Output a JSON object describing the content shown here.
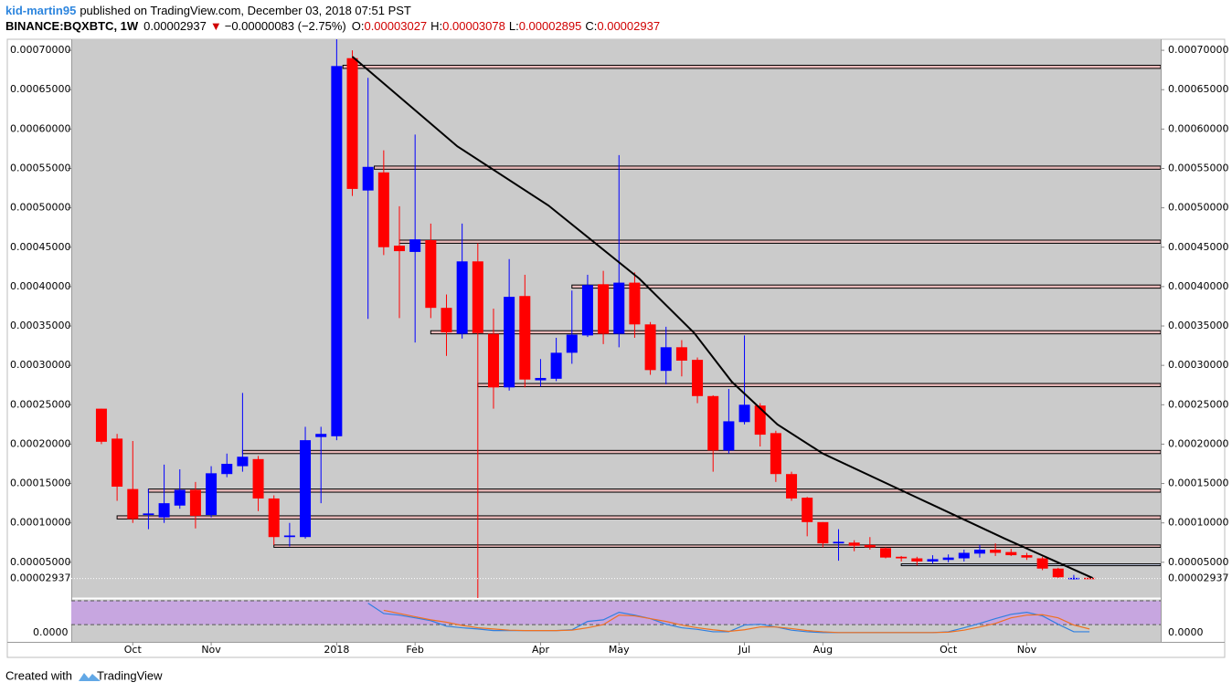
{
  "header": {
    "author": "kid-martin95",
    "published": "published on TradingView.com, December 03, 2018 07:51 PST",
    "symbol": "BINANCE:BQXBTC, 1W",
    "last": "0.00002937",
    "change": "−0.00000083 (−2.75%)",
    "ohlc": [
      {
        "label": "O:",
        "value": "0.00003027"
      },
      {
        "label": "H:",
        "value": "0.00003078"
      },
      {
        "label": "L:",
        "value": "0.00002895"
      },
      {
        "label": "C:",
        "value": "0.00002937"
      }
    ]
  },
  "chart_data": {
    "type": "candlestick",
    "up_color": "#0000ff",
    "down_color": "#ff0000",
    "open": [
      0.000245,
      0.000207,
      0.000143,
      0.00011,
      0.000107,
      0.000122,
      0.000142,
      0.00011,
      0.000162,
      0.000172,
      0.000181,
      0.000131,
      8.2e-05,
      8.2e-05,
      0.000209,
      0.00021,
      0.00069,
      0.000522,
      0.000545,
      0.000452,
      0.000444,
      0.000459,
      0.000373,
      0.00034,
      0.000432,
      0.00034,
      0.000272,
      0.000388,
      0.000281,
      0.000283,
      0.000316,
      0.000338,
      0.000403,
      0.00034,
      0.000405,
      0.000352,
      0.000293,
      0.000323,
      0.000307,
      0.000261,
      0.000192,
      0.000228,
      0.000249,
      0.000214,
      0.000162,
      0.000132,
      0.000101,
      7.4e-05,
      7.5e-05,
      7.2e-05,
      6.8e-05,
      5.7e-05,
      5.5e-05,
      5.1e-05,
      5.3e-05,
      5.5e-05,
      6.1e-05,
      6.6e-05,
      6.3e-05,
      5.9e-05,
      5.5e-05,
      4.2e-05,
      2.9e-05,
      3.027e-05
    ],
    "high": [
      0.000245,
      0.000213,
      0.000204,
      0.000143,
      0.000174,
      0.000168,
      0.000152,
      0.000172,
      0.000188,
      0.000265,
      0.000185,
      0.000135,
      0.0001,
      0.000222,
      0.000222,
      0.000714,
      0.0007,
      0.000665,
      0.000573,
      0.000502,
      0.000593,
      0.00048,
      0.00039,
      0.00048,
      0.000455,
      0.000372,
      0.000435,
      0.000415,
      0.000308,
      0.000335,
      0.000395,
      0.000415,
      0.00042,
      0.000567,
      0.000418,
      0.000355,
      0.000349,
      0.000332,
      0.00031,
      0.000262,
      0.00027,
      0.000338,
      0.000252,
      0.000217,
      0.000165,
      0.000133,
      0.000101,
      9.2e-05,
      7.8e-05,
      8.2e-05,
      6.9e-05,
      5.8e-05,
      5.7e-05,
      5.9e-05,
      6e-05,
      6.6e-05,
      7.2e-05,
      7.4e-05,
      6.7e-05,
      6.2e-05,
      5.7e-05,
      4.3e-05,
      3.4e-05,
      3.078e-05
    ],
    "low": [
      0.0002,
      0.000128,
      0.0001,
      9.2e-05,
      0.0001,
      0.000118,
      9.3e-05,
      0.000107,
      0.000158,
      0.000165,
      0.000115,
      7.2e-05,
      7e-05,
      8e-05,
      0.000125,
      0.000205,
      0.000515,
      0.000359,
      0.00044,
      0.00036,
      0.000329,
      0.00036,
      0.000312,
      0.000334,
      4e-06,
      0.000245,
      0.000268,
      0.000272,
      0.000273,
      0.00028,
      0.000302,
      0.000336,
      0.000327,
      0.000323,
      0.000335,
      0.000288,
      0.000276,
      0.000286,
      0.000252,
      0.000165,
      0.000188,
      0.000225,
      0.000197,
      0.000152,
      0.000128,
      8.3e-05,
      6.9e-05,
      5.2e-05,
      6.4e-05,
      6.6e-05,
      5.5e-05,
      5.1e-05,
      4.6e-05,
      4.8e-05,
      5e-05,
      5.1e-05,
      5.6e-05,
      5.8e-05,
      5.8e-05,
      5.3e-05,
      4e-05,
      3e-05,
      2.8e-05,
      2.895e-05
    ],
    "close": [
      0.000203,
      0.000146,
      0.000105,
      0.000112,
      0.000125,
      0.000142,
      0.000109,
      0.000163,
      0.000175,
      0.000184,
      0.000131,
      8.2e-05,
      8.4e-05,
      0.000205,
      0.000213,
      0.00068,
      0.000524,
      0.000552,
      0.00045,
      0.000445,
      0.00046,
      0.000373,
      0.000342,
      0.000432,
      0.000341,
      0.000272,
      0.000387,
      0.000282,
      0.000284,
      0.000316,
      0.000339,
      0.000402,
      0.00034,
      0.000405,
      0.000352,
      0.000294,
      0.000323,
      0.000306,
      0.000261,
      0.000192,
      0.000229,
      0.00025,
      0.000212,
      0.000162,
      0.000131,
      0.000101,
      7.4e-05,
      7.6e-05,
      7.1e-05,
      6.9e-05,
      5.6e-05,
      5.5e-05,
      5.1e-05,
      5.4e-05,
      5.6e-05,
      6.2e-05,
      6.6e-05,
      6.2e-05,
      5.9e-05,
      5.6e-05,
      4.2e-05,
      3.1e-05,
      3.02e-05,
      2.937e-05
    ],
    "xlim": [
      -1.92,
      67.54
    ],
    "xticks": [
      {
        "value": 2,
        "label": "Oct"
      },
      {
        "value": 7,
        "label": "Nov"
      },
      {
        "value": 15,
        "label": "2018"
      },
      {
        "value": 20,
        "label": "Feb"
      },
      {
        "value": 28,
        "label": "Apr"
      },
      {
        "value": 33,
        "label": "May"
      },
      {
        "value": 41,
        "label": "Jul"
      },
      {
        "value": 46,
        "label": "Aug"
      },
      {
        "value": 54,
        "label": "Oct"
      },
      {
        "value": 59,
        "label": "Nov"
      }
    ],
    "ylim": [
      4.6e-06,
      0.000714
    ],
    "yticks": [
      {
        "value": 5e-05,
        "label": "0.00005000"
      },
      {
        "value": 0.0001,
        "label": "0.00010000"
      },
      {
        "value": 0.00015,
        "label": "0.00015000"
      },
      {
        "value": 0.0002,
        "label": "0.00020000"
      },
      {
        "value": 0.00025,
        "label": "0.00025000"
      },
      {
        "value": 0.0003,
        "label": "0.00030000"
      },
      {
        "value": 0.00035,
        "label": "0.00035000"
      },
      {
        "value": 0.0004,
        "label": "0.00040000"
      },
      {
        "value": 0.00045,
        "label": "0.00045000"
      },
      {
        "value": 0.0005,
        "label": "0.00050000"
      },
      {
        "value": 0.00055,
        "label": "0.00055000"
      },
      {
        "value": 0.0006,
        "label": "0.00060000"
      },
      {
        "value": 0.00065,
        "label": "0.00065000"
      },
      {
        "value": 0.0007,
        "label": "0.00070000"
      }
    ],
    "last_price": {
      "value": 2.937e-05,
      "label": "0.00002937"
    },
    "zones": [
      {
        "bottom": 0.000677,
        "top": 0.000681,
        "from": 15.4,
        "color": "#e9b9b9"
      },
      {
        "bottom": 0.000549,
        "top": 0.000553,
        "from": 17.4,
        "color": "#e9b9b9"
      },
      {
        "bottom": 0.000455,
        "top": 0.000459,
        "from": 19,
        "color": "#e9b9b9"
      },
      {
        "bottom": 0.000398,
        "top": 0.000402,
        "from": 30,
        "color": "#e9b9b9"
      },
      {
        "bottom": 0.00034,
        "top": 0.000344,
        "from": 21,
        "color": "#e9b9b9"
      },
      {
        "bottom": 0.000273,
        "top": 0.000277,
        "from": 24,
        "color": "#e9b9b9"
      },
      {
        "bottom": 0.000188,
        "top": 0.000192,
        "from": 9,
        "color": "#e9b9b9"
      },
      {
        "bottom": 0.000139,
        "top": 0.000143,
        "from": 3,
        "color": "#e9b9b9"
      },
      {
        "bottom": 0.000105,
        "top": 0.000109,
        "from": 1,
        "color": "#e9b9b9"
      },
      {
        "bottom": 6.9e-05,
        "top": 7.2e-05,
        "from": 11,
        "color": "#e9b9b9"
      },
      {
        "bottom": 4.6e-05,
        "top": 4.8e-05,
        "from": 51,
        "color": "#c9d3ea"
      }
    ],
    "trend_line": {
      "color": "#000000",
      "x": [
        16,
        22.7,
        28.5,
        34.3,
        37.8,
        40.2,
        43.1,
        46,
        51.8,
        57.6,
        63.2
      ],
      "y": [
        0.000692,
        0.000578,
        0.000503,
        0.00041,
        0.000341,
        0.000279,
        0.000225,
        0.000188,
        0.000134,
        8e-05,
        3e-05
      ]
    },
    "indicator": {
      "ylim": [
        -23.5,
        84.7
      ],
      "yticks": [
        {
          "value": 0,
          "label": "0.0000"
        }
      ],
      "band": [
        20,
        80
      ],
      "band_color": "#c7a6e0",
      "series": [
        {
          "color": "#2f7fe0",
          "values": [
            null,
            null,
            null,
            null,
            null,
            null,
            null,
            null,
            null,
            null,
            null,
            null,
            null,
            null,
            null,
            null,
            null,
            74,
            48,
            44,
            37,
            30,
            16,
            12,
            9,
            5,
            5,
            5,
            5,
            5,
            7,
            28,
            32,
            51,
            44,
            35,
            21,
            12,
            8,
            2,
            2,
            19,
            21,
            14,
            6,
            2,
            0,
            0,
            0,
            0,
            0,
            0,
            0,
            0,
            2,
            12,
            23,
            35,
            46,
            51,
            42,
            21,
            2,
            2
          ]
        },
        {
          "color": "#f07020",
          "values": [
            null,
            null,
            null,
            null,
            null,
            null,
            null,
            null,
            null,
            null,
            null,
            null,
            null,
            null,
            null,
            null,
            null,
            null,
            56,
            48,
            40,
            32,
            26,
            18,
            12,
            9,
            6,
            5,
            5,
            5,
            6,
            12,
            20,
            44,
            42,
            35,
            28,
            19,
            12,
            7,
            3,
            7,
            14,
            14,
            10,
            5,
            2,
            0,
            0,
            0,
            0,
            0,
            0,
            0,
            1,
            6,
            14,
            23,
            37,
            44,
            45,
            37,
            19,
            9
          ]
        }
      ]
    }
  },
  "footer": {
    "created": "Created with",
    "brand": "TradingView"
  }
}
